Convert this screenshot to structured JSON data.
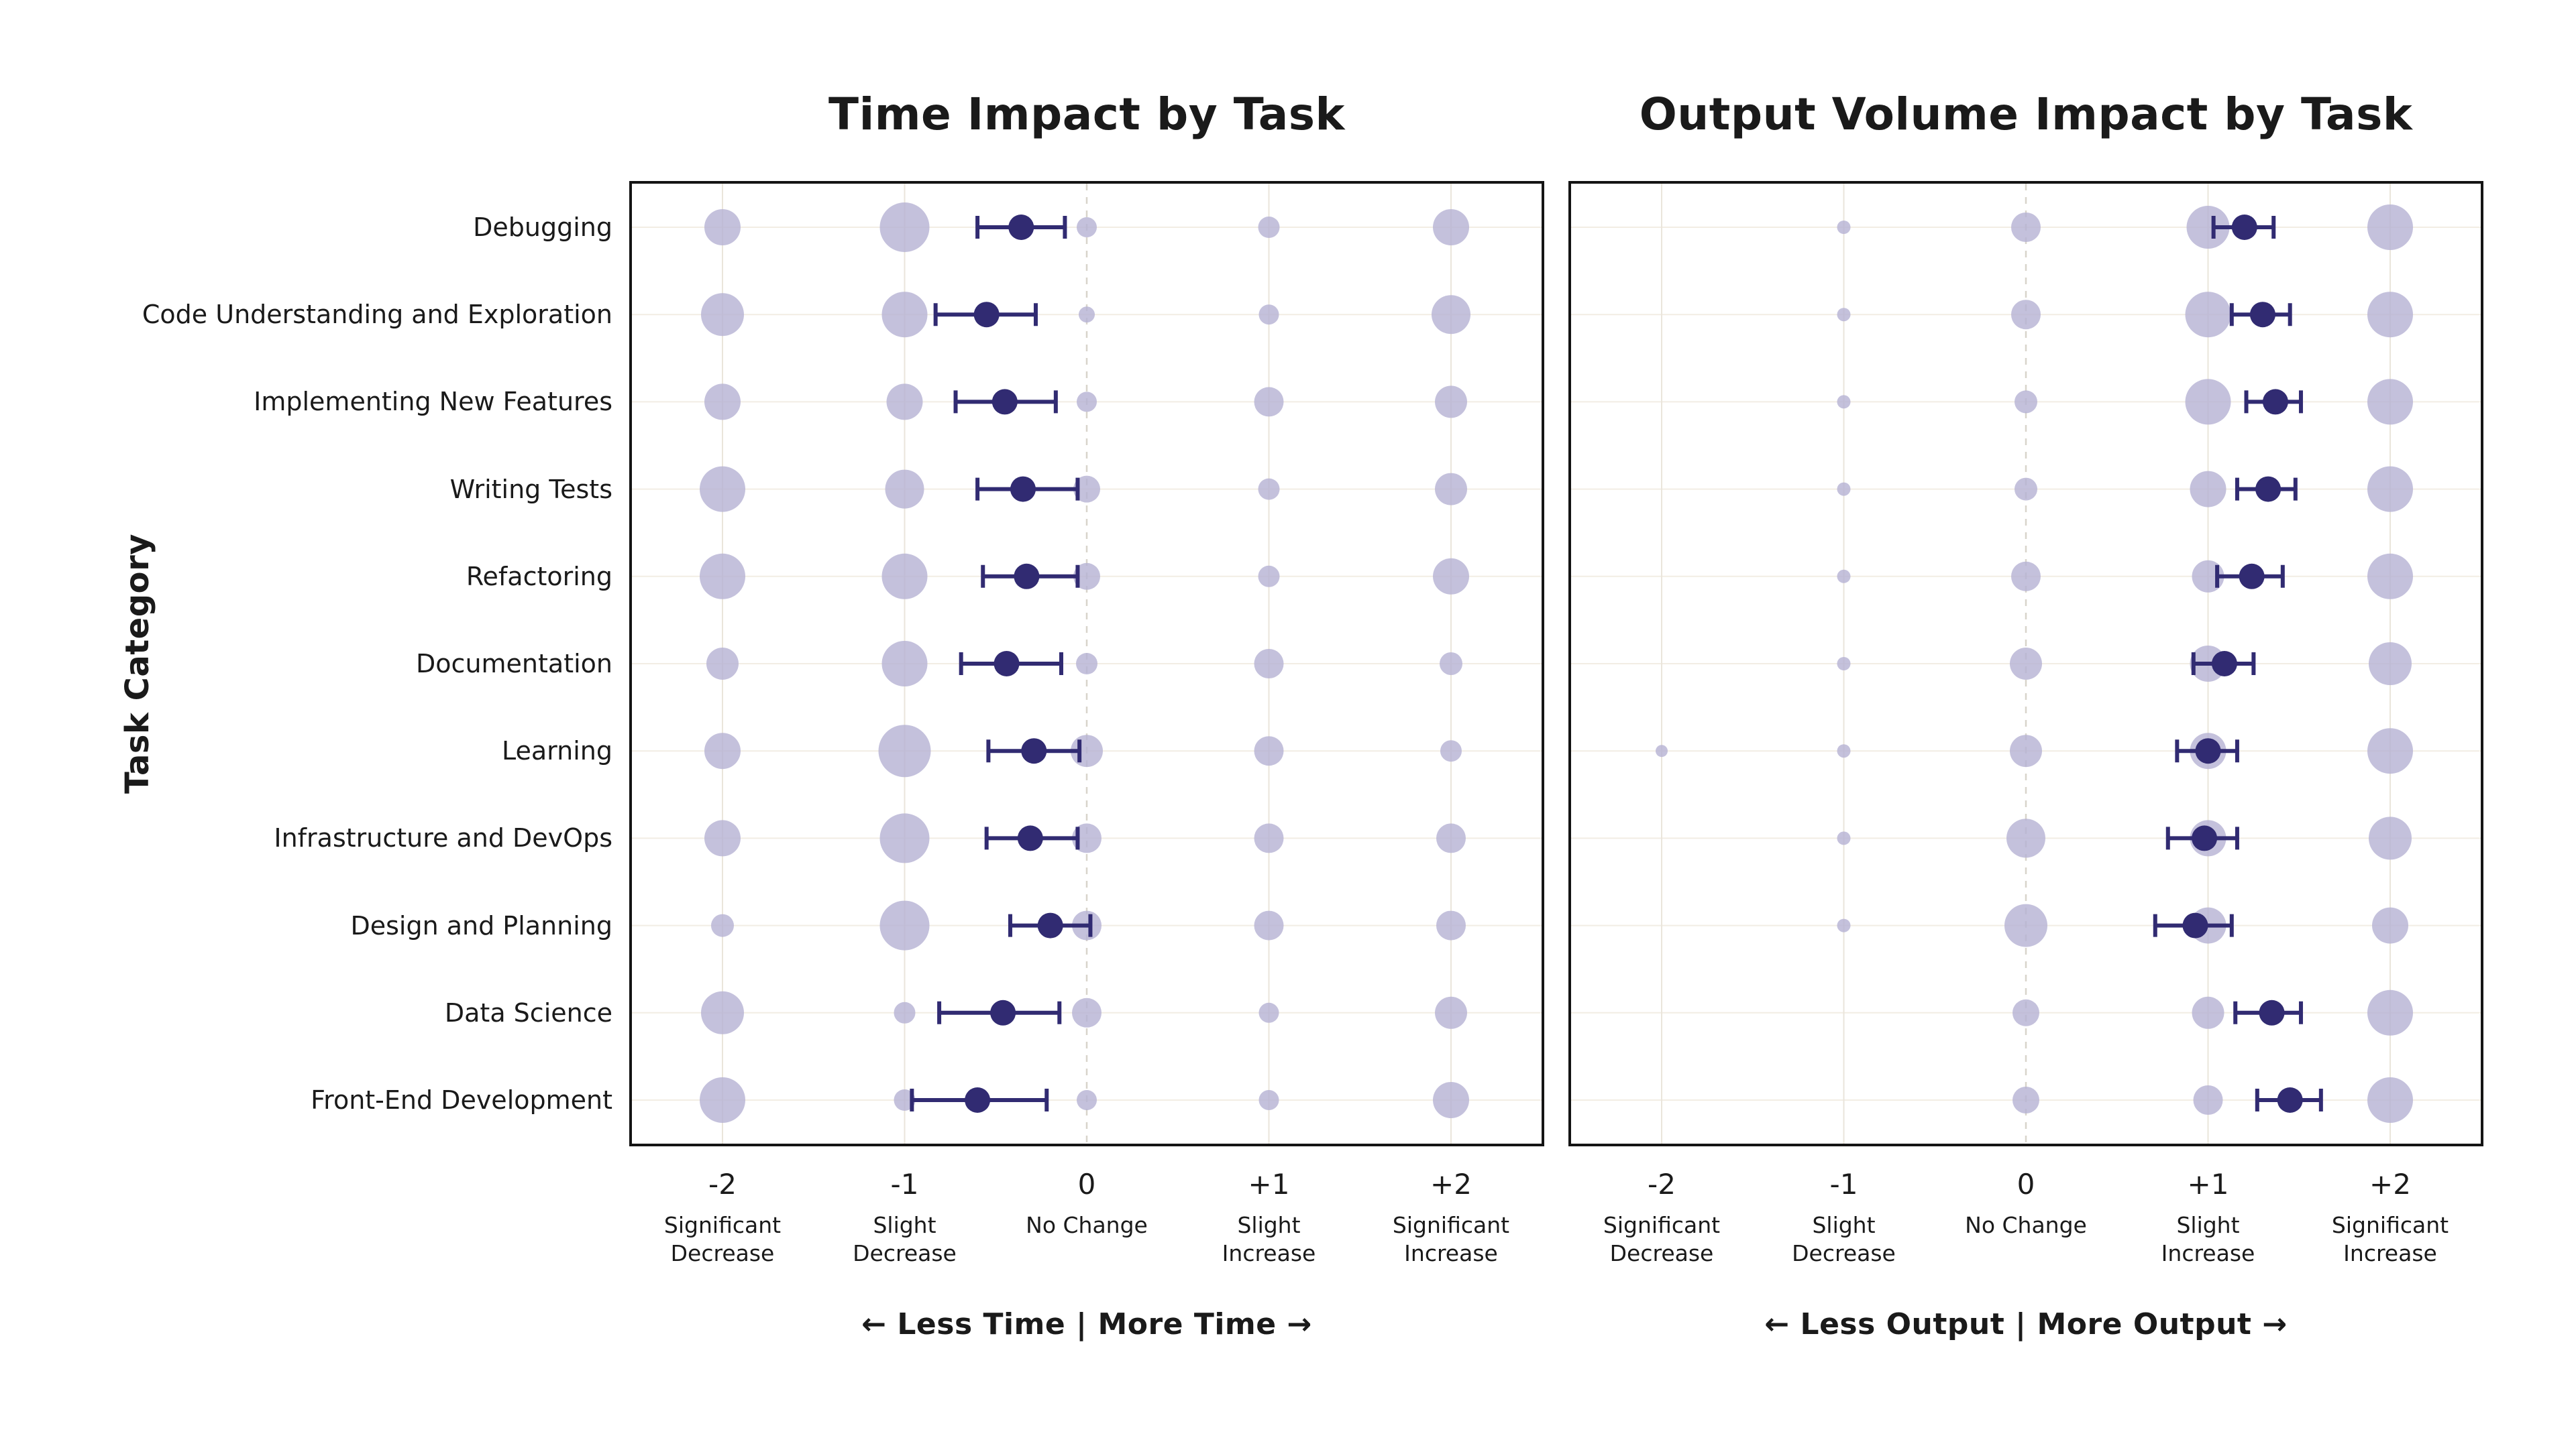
{
  "figure": {
    "y_axis_label": "Task Category"
  },
  "colors": {
    "bubble": "#b5b1d3",
    "accent": "#312b72",
    "grid_h": "#f2ede4",
    "grid_v": "#eae5db",
    "grid_zero": "#d8d4cb",
    "frame": "#141414",
    "text": "#1a1a1a"
  },
  "chart_data": [
    {
      "type": "scatter",
      "subtype": "bubble-distribution-with-mean-ci",
      "title": "Time Impact by Task",
      "footer": "←  Less Time  |  More Time  →",
      "x_values": [
        -2,
        -1,
        0,
        1,
        2
      ],
      "x_tick_labels": [
        "-2",
        "-1",
        "0",
        "+1",
        "+2"
      ],
      "x_tick_sublabels": [
        "Significant\nDecrease",
        "Slight\nDecrease",
        "No Change",
        "Slight\nIncrease",
        "Significant\nIncrease"
      ],
      "xlim": [
        -2.5,
        2.5
      ],
      "categories": [
        "Debugging",
        "Code Understanding and Exploration",
        "Implementing New Features",
        "Writing Tests",
        "Refactoring",
        "Documentation",
        "Learning",
        "Infrastructure and DevOps",
        "Design and Planning",
        "Data Science",
        "Front-End Development"
      ],
      "bubble_radii": [
        [
          27,
          37,
          15,
          16,
          27
        ],
        [
          32,
          34,
          12,
          15,
          29
        ],
        [
          27,
          27,
          15,
          22,
          24
        ],
        [
          34,
          29,
          20,
          16,
          24
        ],
        [
          34,
          34,
          20,
          16,
          27
        ],
        [
          24,
          34,
          16,
          22,
          17
        ],
        [
          27,
          39,
          24,
          22,
          16
        ],
        [
          27,
          37,
          22,
          22,
          22
        ],
        [
          17,
          37,
          22,
          22,
          22
        ],
        [
          32,
          16,
          22,
          15,
          24
        ],
        [
          34,
          16,
          15,
          15,
          27
        ]
      ],
      "mean": [
        -0.36,
        -0.55,
        -0.45,
        -0.35,
        -0.33,
        -0.44,
        -0.29,
        -0.31,
        -0.2,
        -0.46,
        -0.6
      ],
      "ci_low": [
        -0.6,
        -0.83,
        -0.72,
        -0.6,
        -0.57,
        -0.69,
        -0.54,
        -0.55,
        -0.42,
        -0.81,
        -0.96
      ],
      "ci_high": [
        -0.12,
        -0.28,
        -0.17,
        -0.05,
        -0.05,
        -0.14,
        -0.04,
        -0.05,
        0.02,
        -0.15,
        -0.22
      ]
    },
    {
      "type": "scatter",
      "subtype": "bubble-distribution-with-mean-ci",
      "title": "Output Volume Impact by Task",
      "footer": "←  Less Output  |  More Output  →",
      "x_values": [
        -2,
        -1,
        0,
        1,
        2
      ],
      "x_tick_labels": [
        "-2",
        "-1",
        "0",
        "+1",
        "+2"
      ],
      "x_tick_sublabels": [
        "Significant\nDecrease",
        "Slight\nDecrease",
        "No Change",
        "Slight\nIncrease",
        "Significant\nIncrease"
      ],
      "xlim": [
        -2.5,
        2.5
      ],
      "categories": [
        "Debugging",
        "Code Understanding and Exploration",
        "Implementing New Features",
        "Writing Tests",
        "Refactoring",
        "Documentation",
        "Learning",
        "Infrastructure and DevOps",
        "Design and Planning",
        "Data Science",
        "Front-End Development"
      ],
      "bubble_radii": [
        [
          0,
          10,
          22,
          32,
          34
        ],
        [
          0,
          10,
          22,
          34,
          34
        ],
        [
          0,
          10,
          17,
          34,
          34
        ],
        [
          0,
          10,
          17,
          27,
          34
        ],
        [
          0,
          10,
          22,
          24,
          34
        ],
        [
          0,
          10,
          24,
          27,
          32
        ],
        [
          9,
          10,
          24,
          27,
          34
        ],
        [
          0,
          10,
          29,
          27,
          32
        ],
        [
          0,
          10,
          32,
          27,
          27
        ],
        [
          0,
          0,
          20,
          24,
          34
        ],
        [
          0,
          0,
          20,
          22,
          34
        ]
      ],
      "mean": [
        1.2,
        1.3,
        1.37,
        1.33,
        1.24,
        1.09,
        1.0,
        0.98,
        0.93,
        1.35,
        1.45
      ],
      "ci_low": [
        1.03,
        1.13,
        1.21,
        1.16,
        1.05,
        0.92,
        0.83,
        0.78,
        0.71,
        1.15,
        1.27
      ],
      "ci_high": [
        1.36,
        1.45,
        1.51,
        1.48,
        1.41,
        1.25,
        1.16,
        1.16,
        1.13,
        1.51,
        1.62
      ]
    }
  ]
}
